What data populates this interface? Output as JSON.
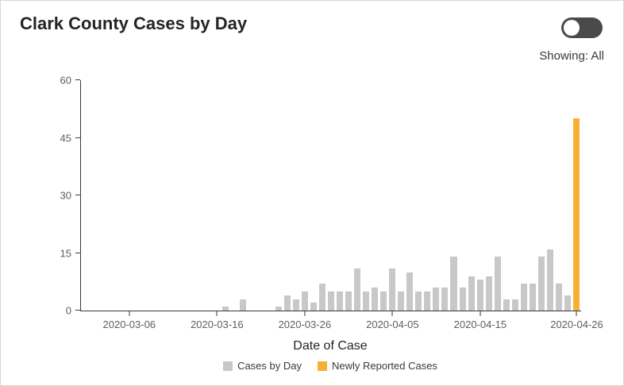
{
  "header": {
    "title": "Clark County Cases by Day",
    "showing_label": "Showing: All"
  },
  "toggle": {
    "state": "off"
  },
  "chart_data": {
    "type": "bar",
    "title": "Clark County Cases by Day",
    "xlabel": "Date of Case",
    "ylabel": "",
    "ylim": [
      0,
      60
    ],
    "yticks": [
      0,
      15,
      30,
      45,
      60
    ],
    "xticks": [
      "2020-03-06",
      "2020-03-16",
      "2020-03-26",
      "2020-04-05",
      "2020-04-15",
      "2020-04-26"
    ],
    "grid": false,
    "legend_position": "bottom",
    "legend": [
      {
        "label": "Cases by Day",
        "color": "#c8c8c8"
      },
      {
        "label": "Newly Reported Cases",
        "color": "#f7b035"
      }
    ],
    "x": [
      "2020-03-01",
      "2020-03-02",
      "2020-03-03",
      "2020-03-04",
      "2020-03-05",
      "2020-03-06",
      "2020-03-07",
      "2020-03-08",
      "2020-03-09",
      "2020-03-10",
      "2020-03-11",
      "2020-03-12",
      "2020-03-13",
      "2020-03-14",
      "2020-03-15",
      "2020-03-16",
      "2020-03-17",
      "2020-03-18",
      "2020-03-19",
      "2020-03-20",
      "2020-03-21",
      "2020-03-22",
      "2020-03-23",
      "2020-03-24",
      "2020-03-25",
      "2020-03-26",
      "2020-03-27",
      "2020-03-28",
      "2020-03-29",
      "2020-03-30",
      "2020-03-31",
      "2020-04-01",
      "2020-04-02",
      "2020-04-03",
      "2020-04-04",
      "2020-04-05",
      "2020-04-06",
      "2020-04-07",
      "2020-04-08",
      "2020-04-09",
      "2020-04-10",
      "2020-04-11",
      "2020-04-12",
      "2020-04-13",
      "2020-04-14",
      "2020-04-15",
      "2020-04-16",
      "2020-04-17",
      "2020-04-18",
      "2020-04-19",
      "2020-04-20",
      "2020-04-21",
      "2020-04-22",
      "2020-04-23",
      "2020-04-24",
      "2020-04-25",
      "2020-04-26"
    ],
    "series": [
      {
        "name": "Cases by Day",
        "color": "#c8c8c8",
        "values": [
          0,
          0,
          0,
          0,
          0,
          0,
          0,
          0,
          0,
          0,
          0,
          0,
          0,
          0,
          0,
          0,
          1,
          0,
          3,
          0,
          0,
          0,
          1,
          4,
          3,
          5,
          2,
          7,
          5,
          5,
          5,
          11,
          5,
          6,
          5,
          11,
          5,
          10,
          5,
          5,
          6,
          6,
          14,
          6,
          9,
          8,
          9,
          14,
          3,
          3,
          7,
          7,
          14,
          16,
          7,
          4,
          0
        ]
      },
      {
        "name": "Newly Reported Cases",
        "color": "#f7b035",
        "points": [
          {
            "x": "2020-04-26",
            "y": 50
          }
        ]
      }
    ]
  }
}
